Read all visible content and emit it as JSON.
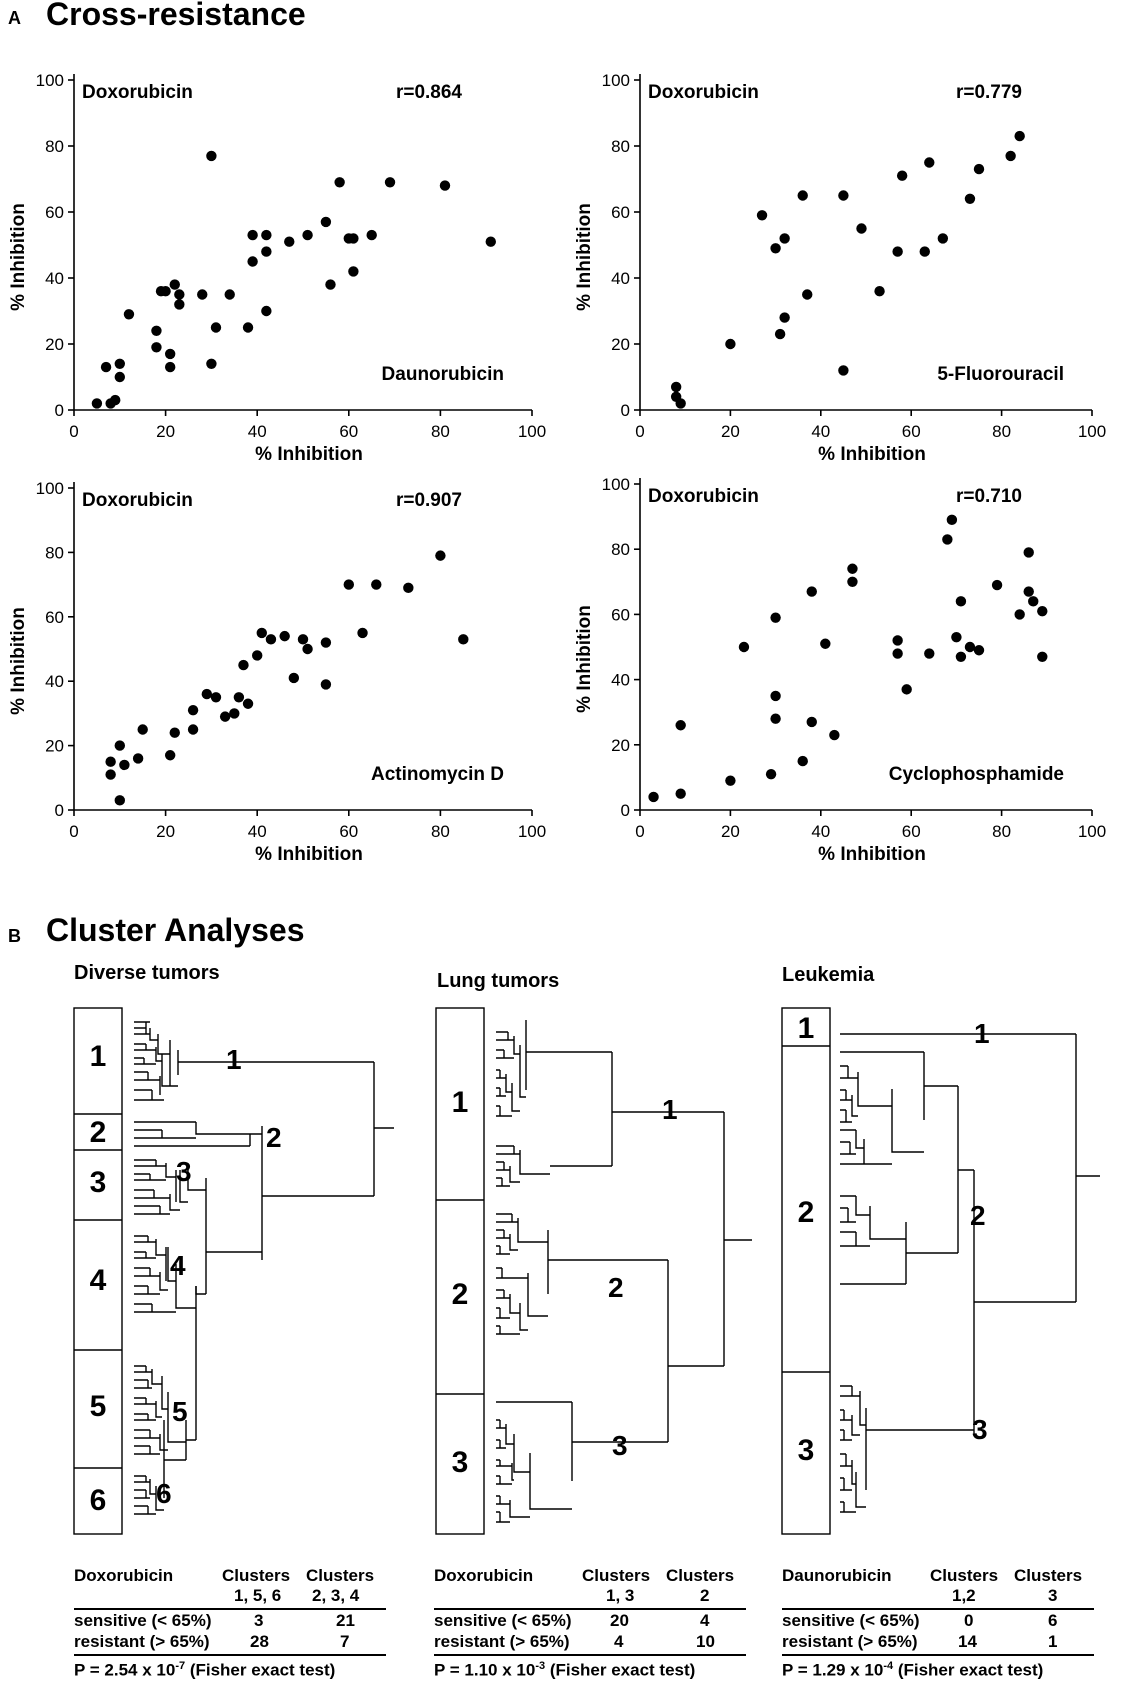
{
  "panel_a": {
    "letter": "A",
    "title": "Cross-resistance"
  },
  "panel_b": {
    "letter": "B",
    "title": "Cluster Analyses"
  },
  "chart_data": [
    {
      "type": "scatter",
      "ylabel_drug": "Doxorubicin",
      "xlabel_drug": "Daunorubicin",
      "r_label": "r=0.864",
      "xlabel": "% Inhibition",
      "ylabel": "% Inhibition",
      "xlim": [
        0,
        100
      ],
      "ylim": [
        0,
        100
      ],
      "xticks": [
        "0",
        "20",
        "40",
        "60",
        "80",
        "100"
      ],
      "yticks": [
        "0",
        "20",
        "40",
        "60",
        "80",
        "100"
      ],
      "x": [
        5,
        9,
        7,
        10,
        10,
        12,
        8,
        18,
        18,
        20,
        21,
        21,
        22,
        23,
        23,
        19,
        30,
        28,
        30,
        31,
        34,
        38,
        39,
        39,
        42,
        42,
        42,
        47,
        51,
        55,
        58,
        60,
        61,
        56,
        61,
        65,
        69,
        81,
        91
      ],
      "y": [
        2,
        3,
        13,
        10,
        14,
        29,
        2,
        19,
        24,
        36,
        17,
        13,
        38,
        35,
        32,
        36,
        77,
        35,
        14,
        25,
        35,
        25,
        45,
        53,
        48,
        53,
        30,
        51,
        53,
        57,
        69,
        52,
        42,
        38,
        52,
        53,
        69,
        68,
        51
      ]
    },
    {
      "type": "scatter",
      "ylabel_drug": "Doxorubicin",
      "xlabel_drug": "5-Fluorouracil",
      "r_label": "r=0.779",
      "xlabel": "% Inhibition",
      "ylabel": "% Inhibition",
      "xlim": [
        0,
        100
      ],
      "ylim": [
        0,
        100
      ],
      "xticks": [
        "0",
        "20",
        "40",
        "60",
        "80",
        "100"
      ],
      "yticks": [
        "0",
        "20",
        "40",
        "60",
        "80",
        "100"
      ],
      "x": [
        8,
        8,
        9,
        20,
        27,
        30,
        31,
        32,
        32,
        36,
        37,
        45,
        45,
        49,
        53,
        57,
        58,
        63,
        64,
        67,
        73,
        75,
        82,
        84
      ],
      "y": [
        4,
        7,
        2,
        20,
        59,
        49,
        23,
        28,
        52,
        65,
        35,
        65,
        12,
        55,
        36,
        48,
        71,
        48,
        75,
        52,
        64,
        73,
        77,
        83
      ]
    },
    {
      "type": "scatter",
      "ylabel_drug": "Doxorubicin",
      "xlabel_drug": "Actinomycin D",
      "r_label": "r=0.907",
      "xlabel": "% Inhibition",
      "ylabel": "% Inhibition",
      "xlim": [
        0,
        100
      ],
      "ylim": [
        0,
        100
      ],
      "xticks": [
        "0",
        "20",
        "40",
        "60",
        "80",
        "100"
      ],
      "yticks": [
        "0",
        "20",
        "40",
        "60",
        "80",
        "100"
      ],
      "x": [
        8,
        8,
        10,
        11,
        10,
        14,
        15,
        21,
        22,
        26,
        26,
        29,
        31,
        33,
        35,
        36,
        37,
        38,
        40,
        41,
        43,
        46,
        48,
        50,
        51,
        55,
        55,
        60,
        63,
        66,
        73,
        80,
        85
      ],
      "y": [
        11,
        15,
        20,
        14,
        3,
        16,
        25,
        17,
        24,
        25,
        31,
        36,
        35,
        29,
        30,
        35,
        45,
        33,
        48,
        55,
        53,
        54,
        41,
        53,
        50,
        52,
        39,
        70,
        55,
        70,
        69,
        79,
        53
      ]
    },
    {
      "type": "scatter",
      "ylabel_drug": "Doxorubicin",
      "xlabel_drug": "Cyclophosphamide",
      "r_label": "r=0.710",
      "xlabel": "% Inhibition",
      "ylabel": "% Inhibition",
      "xlim": [
        0,
        100
      ],
      "ylim": [
        0,
        100
      ],
      "xticks": [
        "0",
        "20",
        "40",
        "60",
        "80",
        "100"
      ],
      "yticks": [
        "0",
        "20",
        "40",
        "60",
        "80",
        "100"
      ],
      "x": [
        3,
        9,
        9,
        20,
        23,
        29,
        30,
        30,
        30,
        36,
        38,
        38,
        41,
        43,
        47,
        47,
        57,
        57,
        59,
        64,
        68,
        69,
        70,
        71,
        71,
        73,
        75,
        79,
        84,
        86,
        86,
        87,
        89,
        89
      ],
      "y": [
        4,
        5,
        26,
        9,
        50,
        11,
        59,
        35,
        28,
        15,
        27,
        67,
        51,
        23,
        74,
        70,
        48,
        52,
        37,
        48,
        83,
        89,
        53,
        47,
        64,
        50,
        49,
        69,
        60,
        67,
        79,
        64,
        61,
        47
      ]
    }
  ],
  "dendrograms": [
    {
      "title": "Diverse tumors",
      "cluster_boxes": [
        "1",
        "2",
        "3",
        "4",
        "5",
        "6"
      ],
      "cluster_labels": [
        "1",
        "2",
        "3",
        "4",
        "5",
        "6"
      ],
      "table": {
        "drug": "Doxorubicin",
        "col1_header": "Clusters",
        "col1_sub": "1, 5, 6",
        "col2_header": "Clusters",
        "col2_sub": "2, 3, 4",
        "row1_label": "sensitive (< 65%)",
        "row1_v1": "3",
        "row1_v2": "21",
        "row2_label": "resistant (> 65%)",
        "row2_v1": "28",
        "row2_v2": "7",
        "p_prefix": "P = 2.54 x 10",
        "p_exp": "-7",
        "p_suffix": " (Fisher exact test)"
      }
    },
    {
      "title": "Lung tumors",
      "cluster_boxes": [
        "1",
        "2",
        "3"
      ],
      "cluster_labels": [
        "1",
        "2",
        "3"
      ],
      "table": {
        "drug": "Doxorubicin",
        "col1_header": "Clusters",
        "col1_sub": "1, 3",
        "col2_header": "Clusters",
        "col2_sub": "2",
        "row1_label": "sensitive (< 65%)",
        "row1_v1": "20",
        "row1_v2": "4",
        "row2_label": "resistant (> 65%)",
        "row2_v1": "4",
        "row2_v2": "10",
        "p_prefix": "P = 1.10 x 10",
        "p_exp": "-3",
        "p_suffix": " (Fisher exact test)"
      }
    },
    {
      "title": "Leukemia",
      "cluster_boxes": [
        "1",
        "2",
        "3"
      ],
      "cluster_labels": [
        "1",
        "2",
        "3"
      ],
      "table": {
        "drug": "Daunorubicin",
        "col1_header": "Clusters",
        "col1_sub": "1,2",
        "col2_header": "Clusters",
        "col2_sub": "3",
        "row1_label": "sensitive (< 65%)",
        "row1_v1": "0",
        "row1_v2": "6",
        "row2_label": "resistant (> 65%)",
        "row2_v1": "14",
        "row2_v2": "1",
        "p_prefix": "P = 1.29 x 10",
        "p_exp": "-4",
        "p_suffix": " (Fisher exact test)"
      }
    }
  ]
}
